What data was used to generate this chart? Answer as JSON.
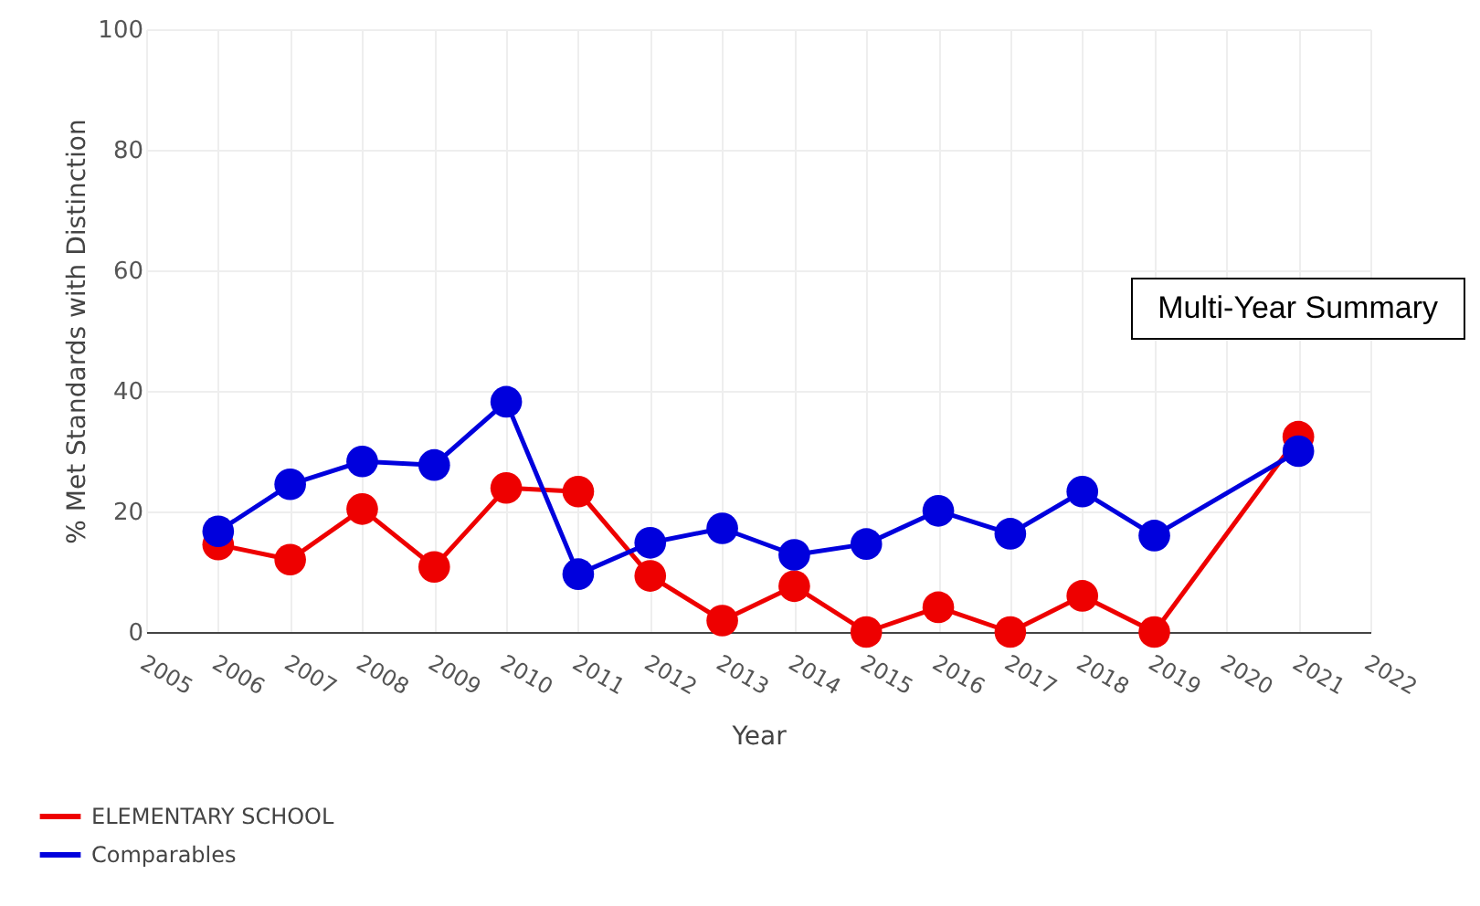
{
  "chart_data": {
    "type": "line",
    "xlabel": "Year",
    "ylabel": "% Met Standards with Distinction",
    "x": [
      2006,
      2007,
      2008,
      2009,
      2010,
      2011,
      2012,
      2013,
      2014,
      2015,
      2016,
      2017,
      2018,
      2019,
      2021
    ],
    "series": [
      {
        "name": "ELEMENTARY SCHOOL",
        "color": "#ee0000",
        "values": [
          14.5,
          12,
          20.4,
          10.8,
          23.9,
          23.3,
          9.3,
          1.9,
          7.6,
          0,
          4.1,
          0,
          6,
          0,
          32.4
        ]
      },
      {
        "name": "Comparables",
        "color": "#0000dd",
        "values": [
          16.7,
          24.5,
          28.3,
          27.7,
          38.2,
          9.6,
          14.8,
          17.2,
          12.8,
          14.6,
          20.1,
          16.3,
          23.3,
          16,
          30
        ]
      }
    ],
    "xlim": [
      2005,
      2022
    ],
    "xticks": [
      2005,
      2006,
      2007,
      2008,
      2009,
      2010,
      2011,
      2012,
      2013,
      2014,
      2015,
      2016,
      2017,
      2018,
      2019,
      2020,
      2021,
      2022
    ],
    "ylim": [
      0,
      100
    ],
    "yticks": [
      0,
      20,
      40,
      60,
      80,
      100
    ],
    "grid": true,
    "legend": "bottom left",
    "marker": "circle",
    "line_style": "solid",
    "annotations": [
      "Multi-Year Summary"
    ]
  }
}
